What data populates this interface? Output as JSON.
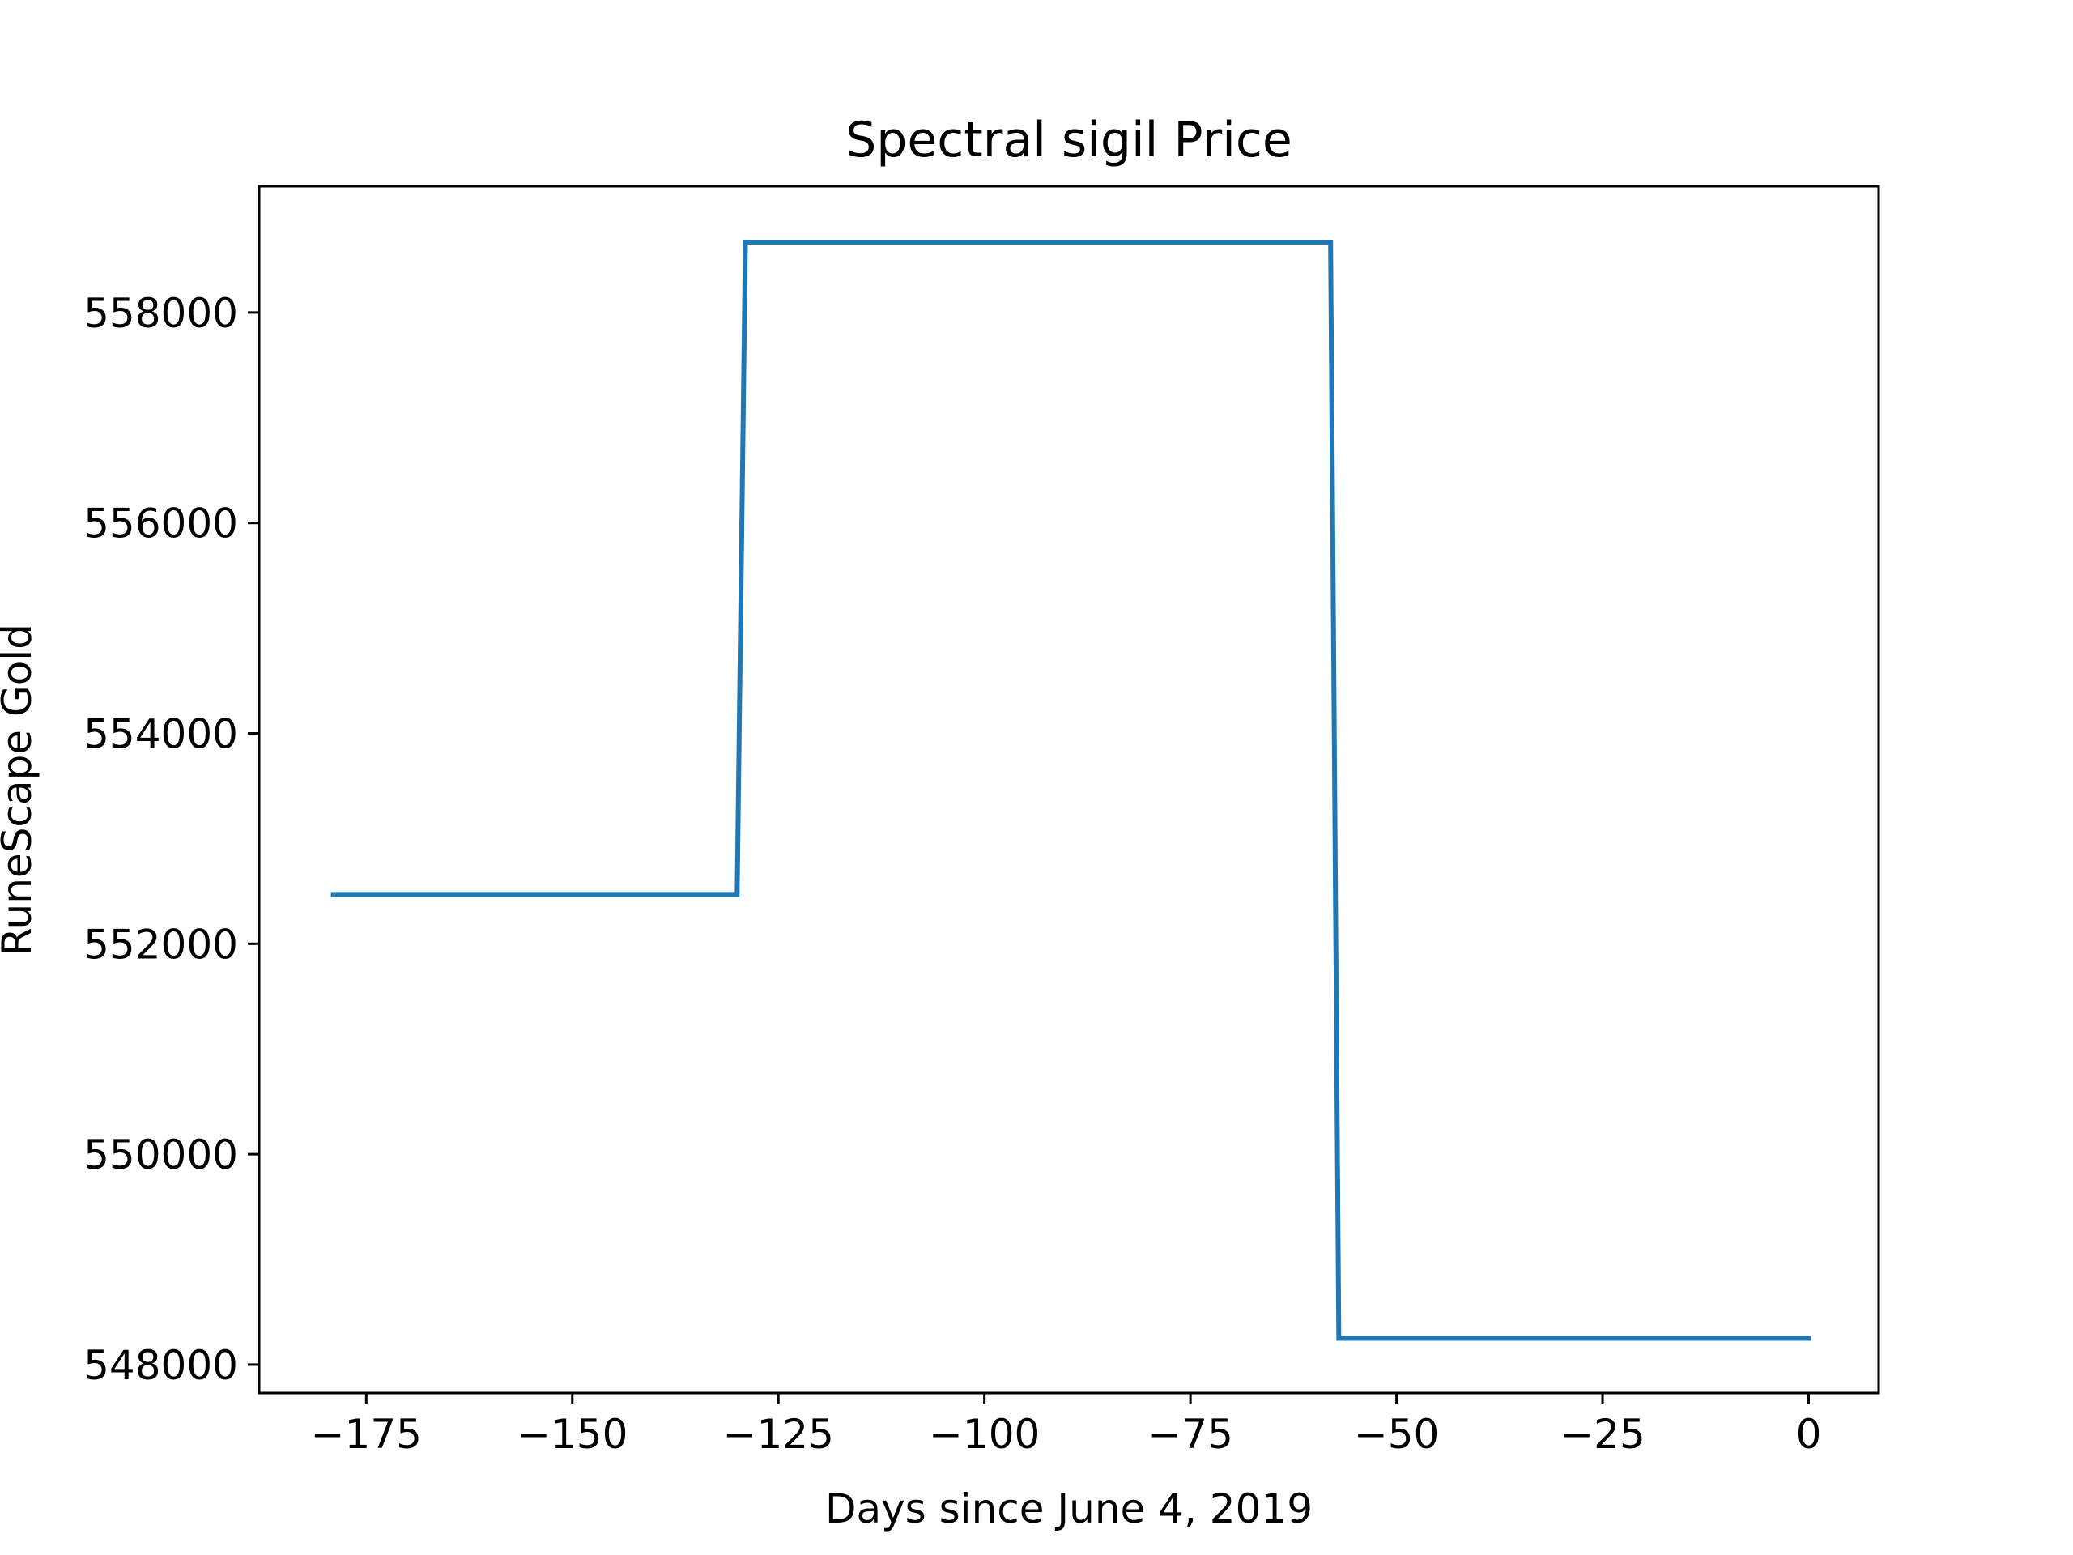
{
  "chart_data": {
    "type": "line",
    "title": "Spectral sigil Price",
    "xlabel": "Days since June 4, 2019",
    "ylabel": "RuneScape Gold",
    "xlim": [
      -188,
      8.5
    ],
    "ylim": [
      547730,
      559200
    ],
    "xticks": [
      -175,
      -150,
      -125,
      -100,
      -75,
      -50,
      -25,
      0
    ],
    "xtick_labels": [
      "−175",
      "−150",
      "−125",
      "−100",
      "−75",
      "−50",
      "−25",
      "0"
    ],
    "yticks": [
      548000,
      550000,
      552000,
      554000,
      556000,
      558000
    ],
    "ytick_labels": [
      "548000",
      "550000",
      "552000",
      "554000",
      "556000",
      "558000"
    ],
    "grid": false,
    "series": [
      {
        "color": "#1f77b4",
        "x": [
          -179,
          -130,
          -129,
          -58,
          -57,
          0
        ],
        "y": [
          552469,
          552469,
          558669,
          558669,
          548250,
          548250
        ]
      }
    ]
  }
}
